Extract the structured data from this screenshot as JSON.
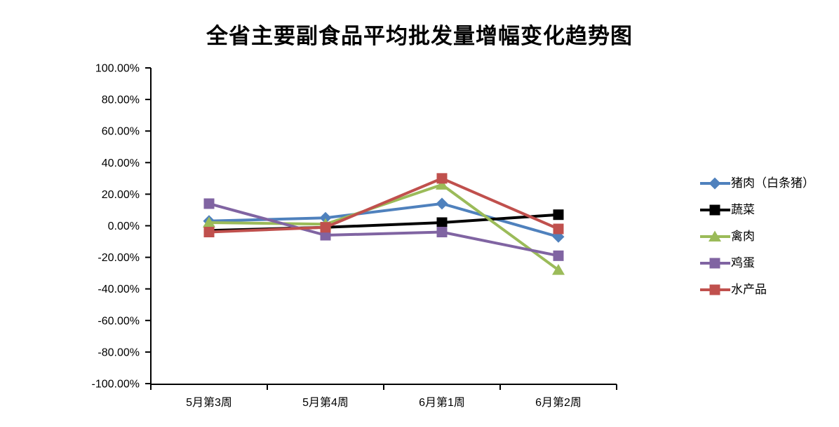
{
  "chart_data": {
    "type": "line",
    "title": "全省主要副食品平均批发量增幅变化趋势图",
    "categories": [
      "5月第3周",
      "5月第4周",
      "6月第1周",
      "6月第2周"
    ],
    "series": [
      {
        "name": "猪肉（白条猪）",
        "color": "#4F81BD",
        "marker": "diamond",
        "values": [
          3,
          5,
          14,
          -7
        ]
      },
      {
        "name": "蔬菜",
        "color": "#000000",
        "marker": "square",
        "values": [
          -3,
          -1,
          2,
          7
        ]
      },
      {
        "name": "禽肉",
        "color": "#9BBB59",
        "marker": "triangle",
        "values": [
          2,
          1,
          26,
          -28
        ]
      },
      {
        "name": "鸡蛋",
        "color": "#8064A2",
        "marker": "square",
        "values": [
          14,
          -6,
          -4,
          -19
        ]
      },
      {
        "name": "水产品",
        "color": "#C0504D",
        "marker": "square",
        "values": [
          -4,
          -1,
          30,
          -2
        ]
      }
    ],
    "values_unit": "percent",
    "ylim": [
      -100,
      100
    ],
    "y_tick_step": 20,
    "y_tick_values": [
      100,
      80,
      60,
      40,
      20,
      0,
      -20,
      -40,
      -60,
      -80,
      -100
    ],
    "y_tick_labels": [
      "100.00%",
      "80.00%",
      "60.00%",
      "40.00%",
      "20.00%",
      "0.00%",
      "-20.00%",
      "-40.00%",
      "-60.00%",
      "-80.00%",
      "-100.00%"
    ],
    "xlabel": "",
    "ylabel": "",
    "grid": false,
    "legend_position": "right",
    "background": "#ffffff",
    "axis_color": "#000000"
  }
}
